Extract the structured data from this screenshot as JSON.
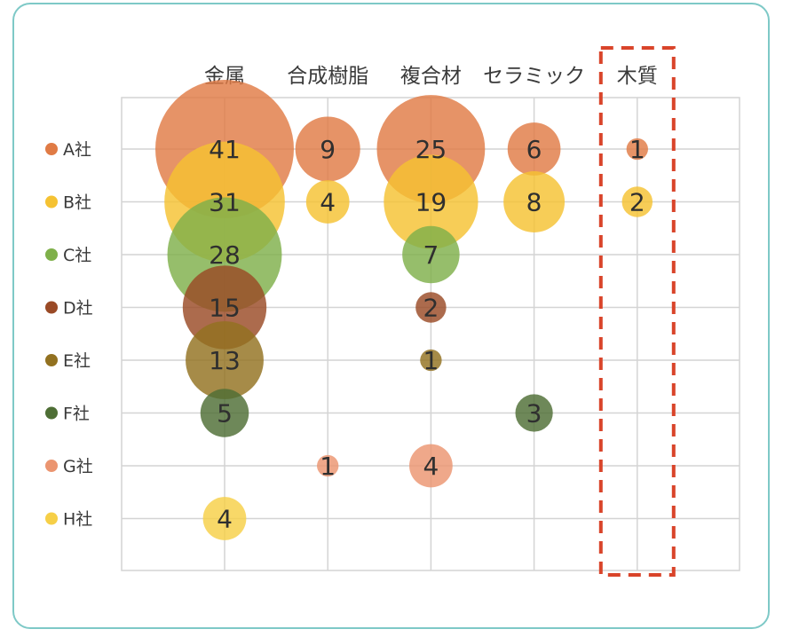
{
  "chart_data": {
    "type": "bubble",
    "categories": [
      "金属",
      "合成樹脂",
      "複合材",
      "セラミック",
      "木質"
    ],
    "rows": [
      "A社",
      "B社",
      "C社",
      "D社",
      "E社",
      "F社",
      "G社",
      "H社"
    ],
    "series": [
      {
        "name": "A社",
        "color": "#e07b45",
        "values": [
          41,
          9,
          25,
          6,
          1
        ]
      },
      {
        "name": "B社",
        "color": "#f5c232",
        "values": [
          31,
          4,
          19,
          8,
          2
        ]
      },
      {
        "name": "C社",
        "color": "#7fb04a",
        "values": [
          28,
          null,
          7,
          null,
          null
        ]
      },
      {
        "name": "D社",
        "color": "#9a4a26",
        "values": [
          15,
          null,
          2,
          null,
          null
        ]
      },
      {
        "name": "E社",
        "color": "#927120",
        "values": [
          13,
          null,
          1,
          null,
          null
        ]
      },
      {
        "name": "F社",
        "color": "#4e6e35",
        "values": [
          5,
          null,
          null,
          3,
          null
        ]
      },
      {
        "name": "G社",
        "color": "#eb9570",
        "values": [
          null,
          1,
          4,
          null,
          null
        ]
      },
      {
        "name": "H社",
        "color": "#f6cf47",
        "values": [
          4,
          null,
          null,
          null,
          null
        ]
      }
    ],
    "highlight": {
      "category": "木質",
      "style": "dashed",
      "color": "#d9442a"
    },
    "grid": true
  }
}
